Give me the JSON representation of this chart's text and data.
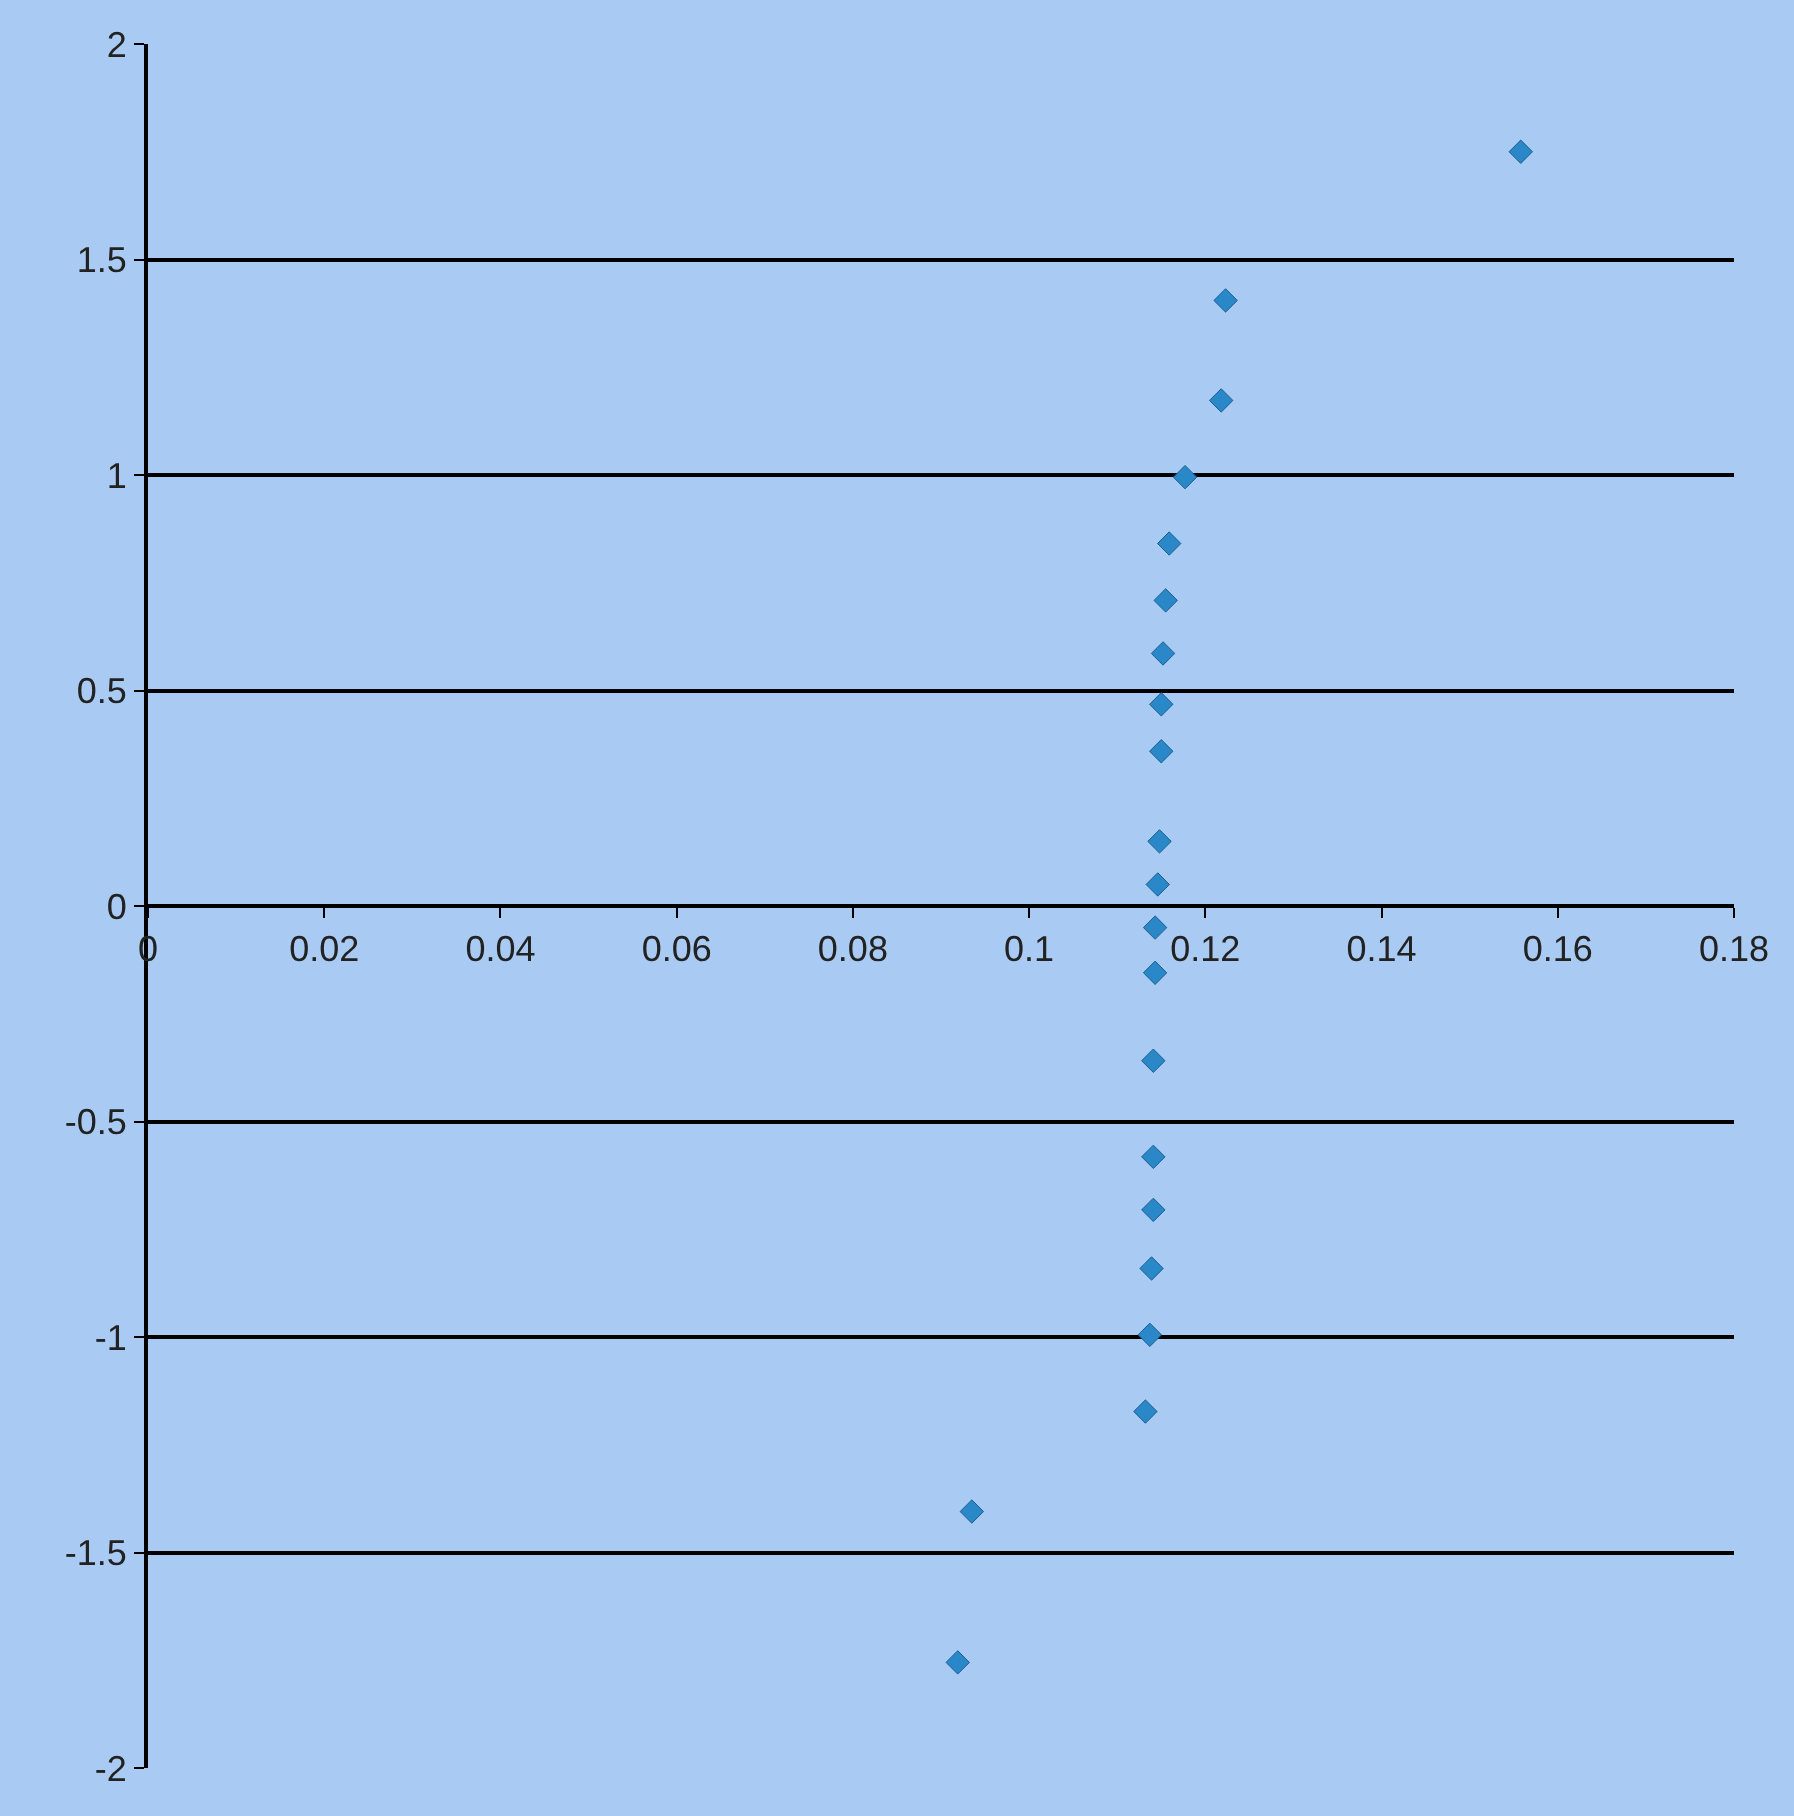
{
  "chart_data": {
    "type": "scatter",
    "marker": "diamond",
    "grid": "y",
    "x": [
      0.1558,
      0.1223,
      0.1218,
      0.1177,
      0.1159,
      0.1155,
      0.1152,
      0.115,
      0.115,
      0.1148,
      0.1146,
      0.1143,
      0.1143,
      0.1141,
      0.1141,
      0.1141,
      0.1139,
      0.1137,
      0.1132,
      0.0935,
      0.0919
    ],
    "series": [
      {
        "color": "#2a88c8",
        "values": [
          1.75,
          1.405,
          1.173,
          0.995,
          0.841,
          0.709,
          0.586,
          0.468,
          0.359,
          0.15,
          0.05,
          -0.05,
          -0.155,
          -0.359,
          -0.582,
          -0.705,
          -0.841,
          -0.995,
          -1.173,
          -1.405,
          -1.755
        ]
      }
    ],
    "xlim": [
      0,
      0.18
    ],
    "xticks": [
      0,
      0.02,
      0.04,
      0.06,
      0.08,
      0.1,
      0.12,
      0.14,
      0.16,
      0.18
    ],
    "ylim": [
      -2,
      2
    ],
    "yticks": [
      -2,
      -1.5,
      -1,
      -0.5,
      0,
      0.5,
      1,
      1.5,
      2
    ]
  }
}
